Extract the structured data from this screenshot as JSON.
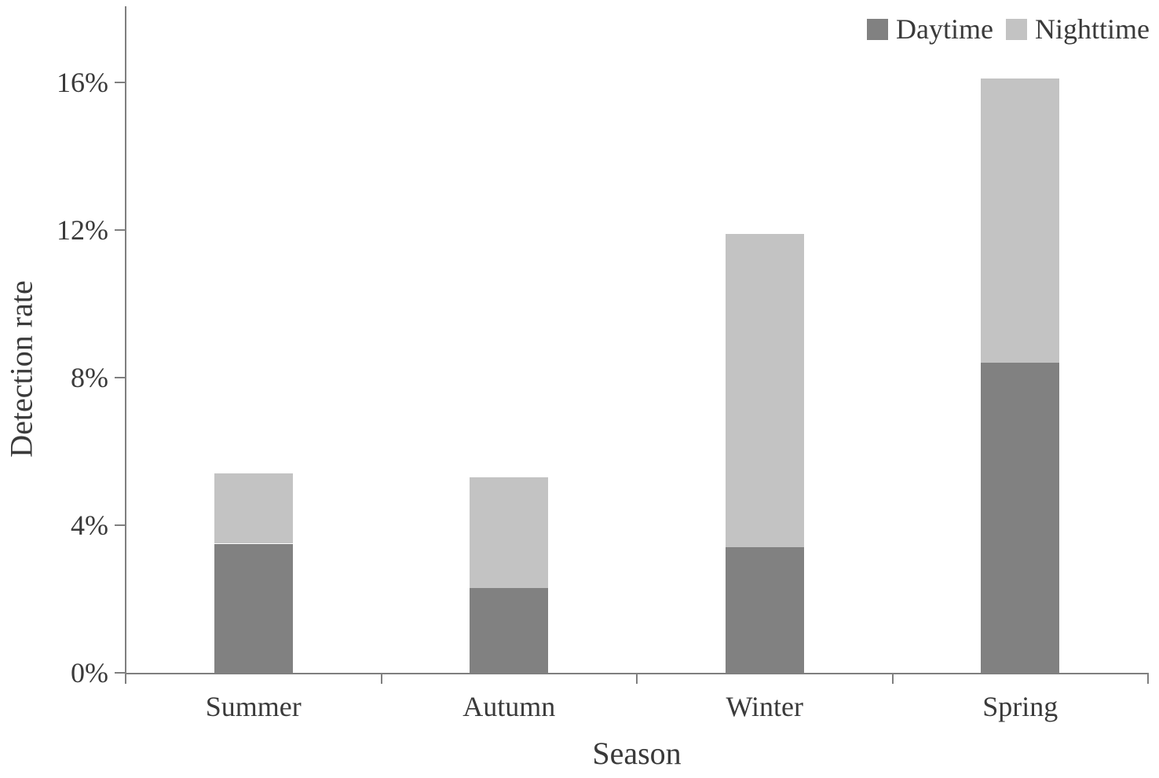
{
  "colors": {
    "background": "#ffffff",
    "axis": "#7f7f7f",
    "text": "#3a3a3a",
    "daytime": "#818181",
    "nighttime": "#c3c3c3"
  },
  "legend": {
    "items": [
      {
        "label": "Daytime",
        "swatch": "daytime-swatch"
      },
      {
        "label": "Nighttime",
        "swatch": "nighttime-swatch"
      }
    ]
  },
  "chart_data": {
    "type": "bar",
    "stacked": true,
    "title": "",
    "xlabel": "Season",
    "ylabel": "Detection rate",
    "categories": [
      "Summer",
      "Autumn",
      "Winter",
      "Spring"
    ],
    "series": [
      {
        "name": "Daytime",
        "color": "#818181",
        "values": [
          3.5,
          2.3,
          3.4,
          8.4
        ]
      },
      {
        "name": "Nighttime",
        "color": "#c3c3c3",
        "values": [
          1.9,
          3.0,
          8.5,
          7.7
        ]
      }
    ],
    "totals": [
      5.4,
      5.3,
      11.9,
      16.1
    ],
    "y_ticks": [
      "0%",
      "4%",
      "8%",
      "12%",
      "16%"
    ],
    "y_tick_values": [
      0,
      4,
      8,
      12,
      16
    ],
    "ylim": [
      0,
      18
    ],
    "grid": false,
    "legend_position": "top-right"
  }
}
